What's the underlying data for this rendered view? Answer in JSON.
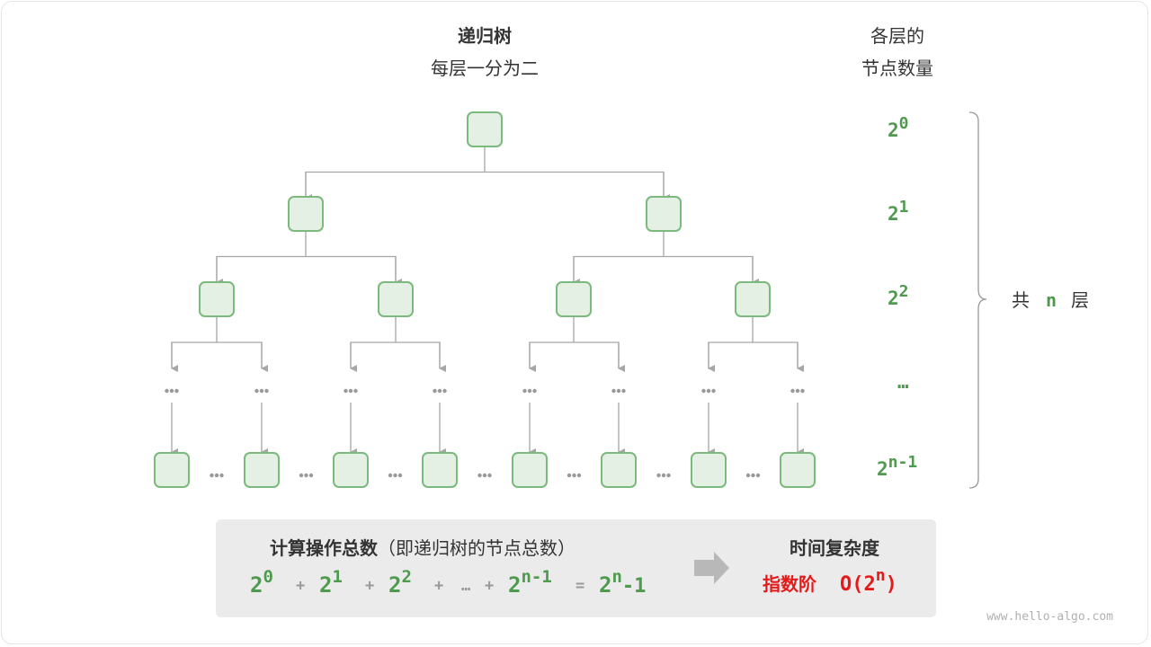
{
  "title": {
    "line1": "递归树",
    "line2": "每层一分为二"
  },
  "right_header": {
    "line1": "各层的",
    "line2": "节点数量"
  },
  "level_labels": [
    {
      "base": "2",
      "exp": "0"
    },
    {
      "base": "2",
      "exp": "1"
    },
    {
      "base": "2",
      "exp": "2"
    },
    {
      "base": "…",
      "exp": ""
    },
    {
      "base": "2",
      "exp": "n-1"
    }
  ],
  "total_layers": {
    "prefix": "共",
    "var": "n",
    "suffix": "层"
  },
  "summary": {
    "left_title": "计算操作总数",
    "left_title_note": "（即递归树的节点总数）",
    "formula": [
      {
        "base": "2",
        "exp": "0"
      },
      {
        "op": "+"
      },
      {
        "base": "2",
        "exp": "1"
      },
      {
        "op": "+"
      },
      {
        "base": "2",
        "exp": "2"
      },
      {
        "op": "+"
      },
      {
        "op": "…"
      },
      {
        "op": "+"
      },
      {
        "base": "2",
        "exp": "n-1"
      },
      {
        "op": "="
      },
      {
        "base": "2",
        "exp": "n",
        "tail": "-1"
      }
    ],
    "right_title": "时间复杂度",
    "complexity_name": "指数阶",
    "complexity_pre": "O(2",
    "complexity_exp": "n",
    "complexity_post": ")"
  },
  "watermark": "www.hello-algo.com",
  "colors": {
    "node_fill": "#e3f0e3",
    "node_stroke": "#7cb97c",
    "accent_green": "#4e9a4e",
    "accent_red": "#e41a1a",
    "edge": "#a6a6a6",
    "panel": "#ebebeb"
  }
}
